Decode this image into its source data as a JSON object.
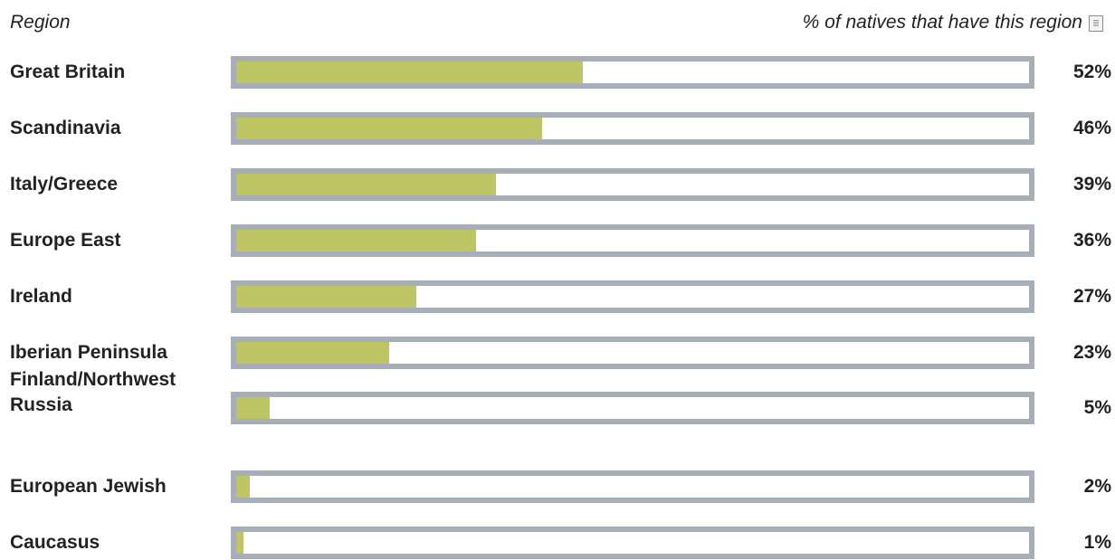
{
  "header": {
    "region_label": "Region",
    "percent_label": "% of natives that have this region",
    "info_icon": "info-icon"
  },
  "colors": {
    "bar_fill": "#bdc663",
    "bar_border": "#a7aeb8",
    "text": "#222222"
  },
  "chart_data": {
    "type": "bar",
    "orientation": "horizontal",
    "categories": [
      "Great Britain",
      "Scandinavia",
      "Italy/Greece",
      "Europe East",
      "Ireland",
      "Iberian Peninsula",
      "Finland/Northwest Russia",
      "European Jewish",
      "Caucasus"
    ],
    "values": [
      52,
      46,
      39,
      36,
      27,
      23,
      5,
      2,
      1
    ],
    "value_labels": [
      "52%",
      "46%",
      "39%",
      "36%",
      "27%",
      "23%",
      "5%",
      "2%",
      "1%"
    ],
    "xlim": [
      0,
      100
    ],
    "grid": false
  }
}
